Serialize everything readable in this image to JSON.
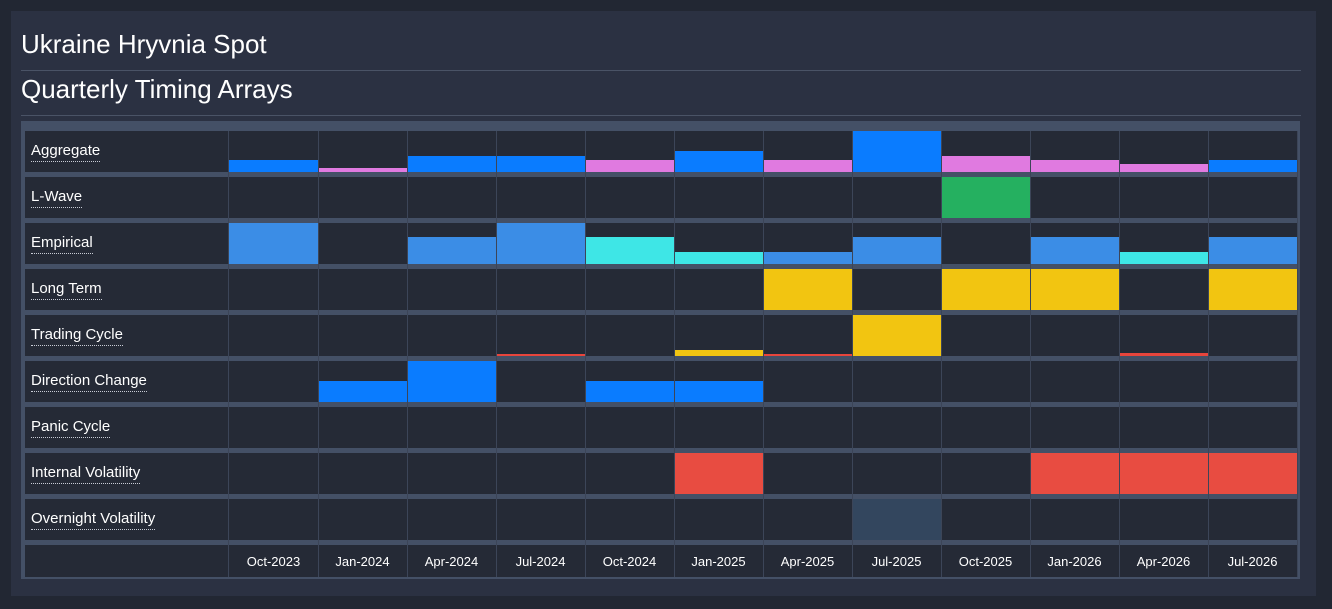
{
  "page": {
    "title": "Ukraine Hryvnia Spot",
    "subtitle": "Quarterly Timing Arrays"
  },
  "chart_data": {
    "type": "heatmap",
    "title": "Quarterly Timing Arrays",
    "columns": [
      "Oct-2023",
      "Jan-2024",
      "Apr-2024",
      "Jul-2024",
      "Oct-2024",
      "Jan-2025",
      "Apr-2025",
      "Jul-2025",
      "Oct-2025",
      "Jan-2026",
      "Apr-2026",
      "Jul-2026"
    ],
    "value_scale": [
      0,
      1
    ],
    "rows": [
      {
        "label": "Aggregate",
        "values": [
          0.3,
          0.1,
          0.4,
          0.4,
          0.3,
          0.5,
          0.3,
          1.0,
          0.4,
          0.3,
          0.2,
          0.3
        ],
        "colors": [
          "#0a7cff",
          "#e07ae0",
          "#0a7cff",
          "#0a7cff",
          "#e07ae0",
          "#0a7cff",
          "#e07ae0",
          "#0a7cff",
          "#e07ae0",
          "#e07ae0",
          "#e07ae0",
          "#0a7cff"
        ]
      },
      {
        "label": "L-Wave",
        "values": [
          0,
          0,
          0,
          0,
          0,
          0,
          0,
          0,
          1.0,
          0,
          0,
          0
        ],
        "colors": [
          "#25b060",
          "#25b060",
          "#25b060",
          "#25b060",
          "#25b060",
          "#25b060",
          "#25b060",
          "#25b060",
          "#25b060",
          "#25b060",
          "#25b060",
          "#25b060"
        ]
      },
      {
        "label": "Empirical",
        "values": [
          1.0,
          0,
          0.65,
          1.0,
          0.65,
          0.3,
          0.3,
          0.65,
          0,
          0.65,
          0.3,
          0.65
        ],
        "colors": [
          "#3b8de6",
          "#3b8de6",
          "#3b8de6",
          "#3b8de6",
          "#3ee6e6",
          "#3ee6e6",
          "#3b8de6",
          "#3b8de6",
          "#3b8de6",
          "#3b8de6",
          "#3ee6e6",
          "#3b8de6"
        ]
      },
      {
        "label": "Long Term",
        "values": [
          0,
          0,
          0,
          0,
          0,
          0,
          1.0,
          0,
          1.0,
          1.0,
          0,
          1.0
        ],
        "colors": [
          "#f2c511",
          "#f2c511",
          "#f2c511",
          "#f2c511",
          "#f2c511",
          "#f2c511",
          "#f2c511",
          "#f2c511",
          "#f2c511",
          "#f2c511",
          "#f2c511",
          "#f2c511"
        ]
      },
      {
        "label": "Trading Cycle",
        "values": [
          0,
          0,
          0,
          0.03,
          0,
          0.15,
          0.05,
          1.0,
          0,
          0,
          0.07,
          0
        ],
        "colors": [
          "#e8453c",
          "#e8453c",
          "#e8453c",
          "#e8453c",
          "#e8453c",
          "#f2c511",
          "#e8453c",
          "#f2c511",
          "#e8453c",
          "#e8453c",
          "#e8453c",
          "#e8453c"
        ]
      },
      {
        "label": "Direction Change",
        "values": [
          0,
          0.5,
          1.0,
          0,
          0.5,
          0.5,
          0,
          0,
          0,
          0,
          0,
          0
        ],
        "colors": [
          "#0a7cff",
          "#0a7cff",
          "#0a7cff",
          "#0a7cff",
          "#0a7cff",
          "#0a7cff",
          "#0a7cff",
          "#0a7cff",
          "#0a7cff",
          "#0a7cff",
          "#0a7cff",
          "#0a7cff"
        ]
      },
      {
        "label": "Panic Cycle",
        "values": [
          0,
          0,
          0,
          0,
          0,
          0,
          0,
          0,
          0,
          0,
          0,
          0
        ],
        "colors": [
          "#e8453c",
          "#e8453c",
          "#e8453c",
          "#e8453c",
          "#e8453c",
          "#e8453c",
          "#e8453c",
          "#e8453c",
          "#e8453c",
          "#e8453c",
          "#e8453c",
          "#e8453c"
        ]
      },
      {
        "label": "Internal Volatility",
        "values": [
          0,
          0,
          0,
          0,
          0,
          1.0,
          0,
          0,
          0,
          1.0,
          1.0,
          1.0
        ],
        "colors": [
          "#e84c41",
          "#e84c41",
          "#e84c41",
          "#e84c41",
          "#e84c41",
          "#e84c41",
          "#e84c41",
          "#e84c41",
          "#e84c41",
          "#e84c41",
          "#e84c41",
          "#e84c41"
        ]
      },
      {
        "label": "Overnight Volatility",
        "values": [
          0,
          0,
          0,
          0,
          0,
          0,
          0,
          1.0,
          0,
          0,
          0,
          0
        ],
        "colors": [
          "#33465e",
          "#33465e",
          "#33465e",
          "#33465e",
          "#33465e",
          "#33465e",
          "#33465e",
          "#33465e",
          "#33465e",
          "#33465e",
          "#33465e",
          "#33465e"
        ]
      }
    ]
  }
}
